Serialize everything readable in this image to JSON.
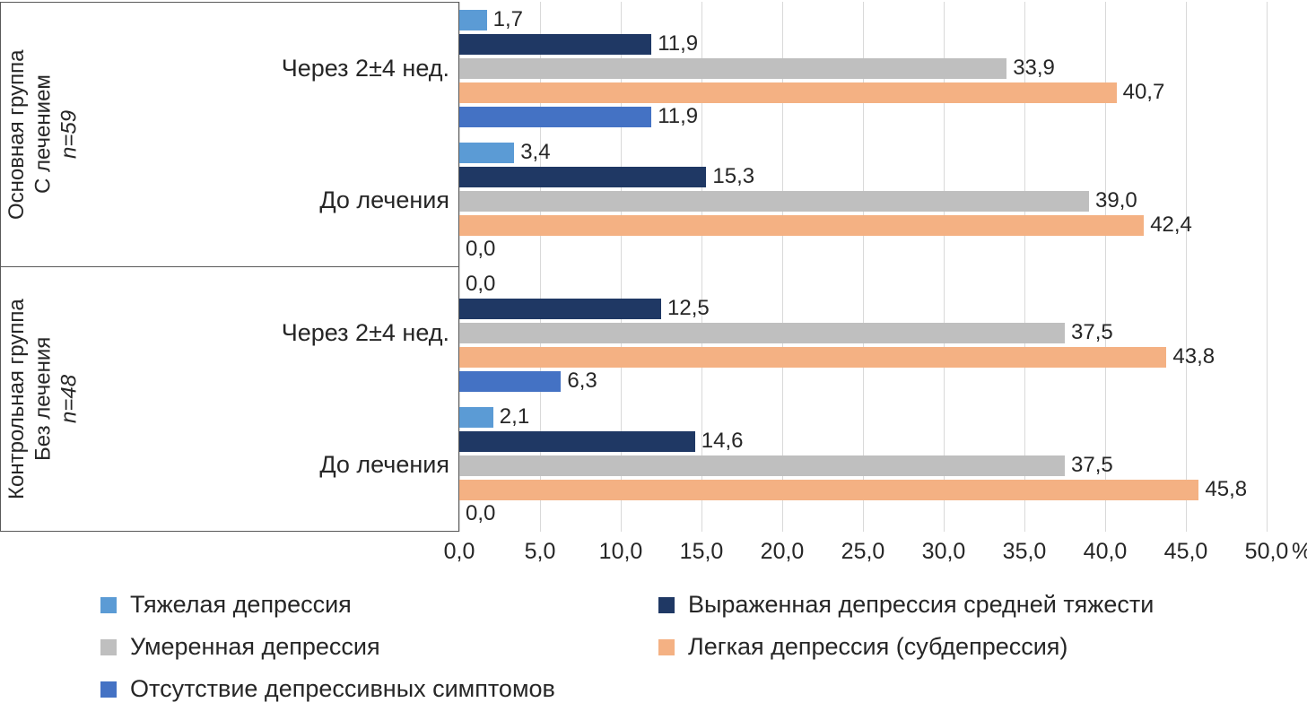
{
  "chart_data": {
    "type": "bar",
    "orientation": "horizontal",
    "title": "",
    "xlim": [
      0,
      50
    ],
    "x_tick_step": 5,
    "x_ticks": [
      "0,0",
      "5,0",
      "10,0",
      "15,0",
      "20,0",
      "25,0",
      "30,0",
      "35,0",
      "40,0",
      "45,0",
      "50,0"
    ],
    "axis_suffix": "%",
    "grid": "vertical",
    "legend_position": "bottom",
    "series": [
      {
        "name": "Тяжелая депрессия",
        "color": "#5B9BD5"
      },
      {
        "name": "Выраженная депрессия средней тяжести",
        "color": "#1F3864"
      },
      {
        "name": "Умеренная депрессия",
        "color": "#BFBFBF"
      },
      {
        "name": "Легкая депрессия (субдепрессия)",
        "color": "#F4B183"
      },
      {
        "name": "Отсутствие депрессивных симптомов",
        "color": "#4472C4"
      }
    ],
    "groups": [
      {
        "label_lines": [
          "Основная группа",
          "С лечением",
          "n=59"
        ],
        "clusters": [
          {
            "category": "Через 2±4 нед.",
            "values": [
              1.7,
              11.9,
              33.9,
              40.7,
              11.9
            ],
            "labels": [
              "1,7",
              "11,9",
              "33,9",
              "40,7",
              "11,9"
            ]
          },
          {
            "category": "До лечения",
            "values": [
              3.4,
              15.3,
              39.0,
              42.4,
              0.0
            ],
            "labels": [
              "3,4",
              "15,3",
              "39,0",
              "42,4",
              "0,0"
            ]
          }
        ]
      },
      {
        "label_lines": [
          "Контрольная группа",
          "Без лечения",
          "n=48"
        ],
        "clusters": [
          {
            "category": "Через 2±4 нед.",
            "values": [
              0.0,
              12.5,
              37.5,
              43.8,
              6.3
            ],
            "labels": [
              "0,0",
              "12,5",
              "37,5",
              "43,8",
              "6,3"
            ]
          },
          {
            "category": "До лечения",
            "values": [
              2.1,
              14.6,
              37.5,
              45.8,
              0.0
            ],
            "labels": [
              "2,1",
              "14,6",
              "37,5",
              "45,8",
              "0,0"
            ]
          }
        ]
      }
    ],
    "colors": {
      "gridline": "#D9D9D9",
      "box_border": "#595959",
      "text": "#262626"
    }
  }
}
